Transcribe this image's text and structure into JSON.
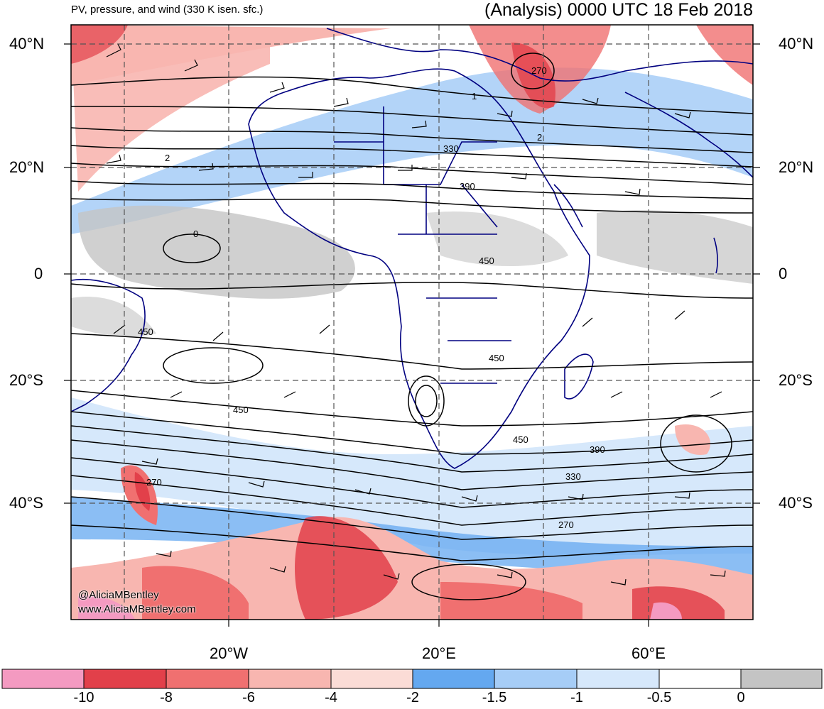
{
  "header": {
    "subtitle": "PV, pressure, and wind (330 K isen. sfc.)",
    "title": "(Analysis) 0000 UTC 18 Feb 2018"
  },
  "axes": {
    "lat_left": [
      "40°N",
      "20°N",
      "0",
      "20°S",
      "40°S"
    ],
    "lat_right": [
      "40°N",
      "20°N",
      "0",
      "20°S",
      "40°S"
    ],
    "lon_bottom": [
      "20°W",
      "20°E",
      "60°E"
    ]
  },
  "contour_labels": [
    "270",
    "1",
    "2",
    "330",
    "390",
    "0",
    "450",
    "450",
    "450",
    "450",
    "450",
    "390",
    "330",
    "270",
    "270",
    "2"
  ],
  "credits": {
    "handle": "@AliciaMBentley",
    "website": "www.AliciaMBentley.com"
  },
  "colorbar": {
    "labels": [
      "-10",
      "-8",
      "-6",
      "-4",
      "-2",
      "-1.5",
      "-1",
      "-0.5",
      "0"
    ],
    "colors": [
      "#f49ac1",
      "#e2404a",
      "#f07070",
      "#f8b6b0",
      "#fbdcd6",
      "#64a8f0",
      "#a6cdf7",
      "#d6e8fb",
      "#ffffff",
      "#c4c4c4"
    ]
  },
  "palette": {
    "grid_dash": "#555555",
    "coastline": "#000080",
    "isobar": "#000000"
  }
}
